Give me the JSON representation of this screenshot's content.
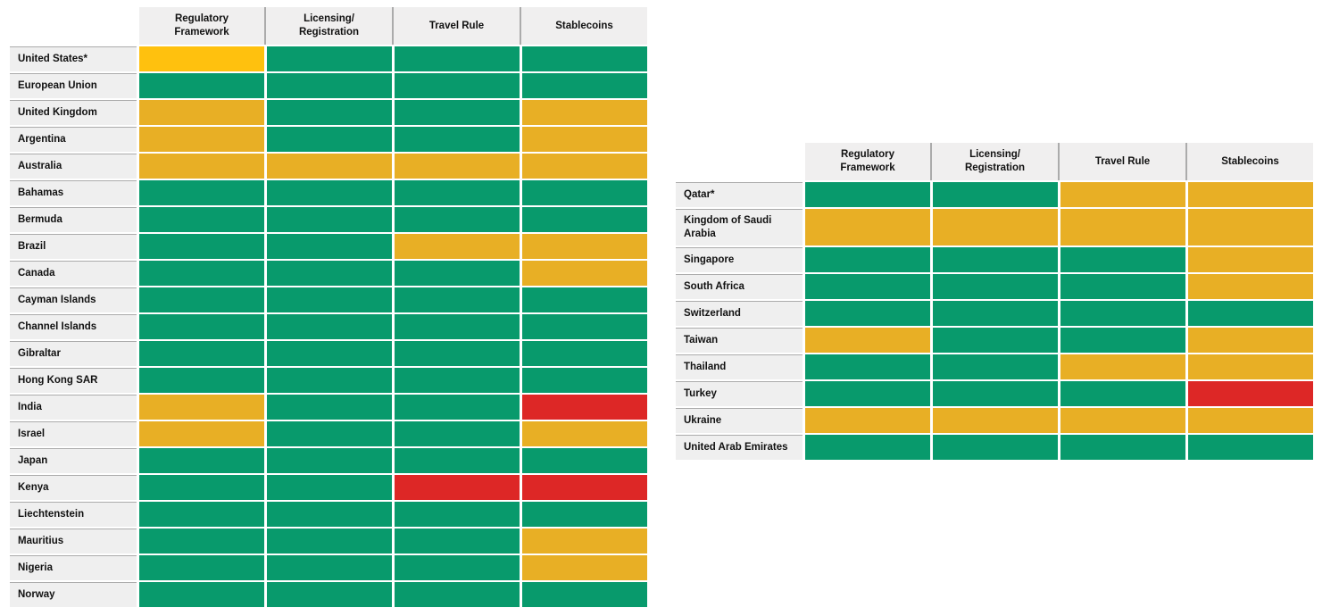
{
  "page": {
    "background": "#FFFFFF"
  },
  "colors": {
    "green": "#089A6C",
    "amber": "#E8AF25",
    "yellow": "#FFC10E",
    "red": "#DD2726",
    "header_bg": "#F0EFEF",
    "label_bg": "#EFEFEF",
    "separator": "#ABABAB",
    "text": "#111111"
  },
  "chart_data": [
    {
      "type": "heatmap",
      "title": "",
      "columns": [
        "Regulatory Framework",
        "Licensing/ Registration",
        "Travel Rule",
        "Stablecoins"
      ],
      "rows": [
        "United States*",
        "European Union",
        "United Kingdom",
        "Argentina",
        "Australia",
        "Bahamas",
        "Bermuda",
        "Brazil",
        "Canada",
        "Cayman Islands",
        "Channel Islands",
        "Gibraltar",
        "Hong Kong SAR",
        "India",
        "Israel",
        "Japan",
        "Kenya",
        "Liechtenstein",
        "Mauritius",
        "Nigeria",
        "Norway"
      ],
      "values": [
        [
          "yellow",
          "green",
          "green",
          "green"
        ],
        [
          "green",
          "green",
          "green",
          "green"
        ],
        [
          "amber",
          "green",
          "green",
          "amber"
        ],
        [
          "amber",
          "green",
          "green",
          "amber"
        ],
        [
          "amber",
          "amber",
          "amber",
          "amber"
        ],
        [
          "green",
          "green",
          "green",
          "green"
        ],
        [
          "green",
          "green",
          "green",
          "green"
        ],
        [
          "green",
          "green",
          "amber",
          "amber"
        ],
        [
          "green",
          "green",
          "green",
          "amber"
        ],
        [
          "green",
          "green",
          "green",
          "green"
        ],
        [
          "green",
          "green",
          "green",
          "green"
        ],
        [
          "green",
          "green",
          "green",
          "green"
        ],
        [
          "green",
          "green",
          "green",
          "green"
        ],
        [
          "amber",
          "green",
          "green",
          "red"
        ],
        [
          "amber",
          "green",
          "green",
          "amber"
        ],
        [
          "green",
          "green",
          "green",
          "green"
        ],
        [
          "green",
          "green",
          "red",
          "red"
        ],
        [
          "green",
          "green",
          "green",
          "green"
        ],
        [
          "green",
          "green",
          "green",
          "amber"
        ],
        [
          "green",
          "green",
          "green",
          "amber"
        ],
        [
          "green",
          "green",
          "green",
          "green"
        ]
      ]
    },
    {
      "type": "heatmap",
      "title": "",
      "columns": [
        "Regulatory Framework",
        "Licensing/ Registration",
        "Travel Rule",
        "Stablecoins"
      ],
      "rows": [
        "Qatar*",
        "Kingdom of Saudi Arabia",
        "Singapore",
        "South Africa",
        "Switzerland",
        "Taiwan",
        "Thailand",
        "Turkey",
        "Ukraine",
        "United Arab Emirates"
      ],
      "values": [
        [
          "green",
          "green",
          "amber",
          "amber"
        ],
        [
          "amber",
          "amber",
          "amber",
          "amber"
        ],
        [
          "green",
          "green",
          "green",
          "amber"
        ],
        [
          "green",
          "green",
          "green",
          "amber"
        ],
        [
          "green",
          "green",
          "green",
          "green"
        ],
        [
          "amber",
          "green",
          "green",
          "amber"
        ],
        [
          "green",
          "green",
          "amber",
          "amber"
        ],
        [
          "green",
          "green",
          "green",
          "red"
        ],
        [
          "amber",
          "amber",
          "amber",
          "amber"
        ],
        [
          "green",
          "green",
          "green",
          "green"
        ]
      ]
    }
  ]
}
